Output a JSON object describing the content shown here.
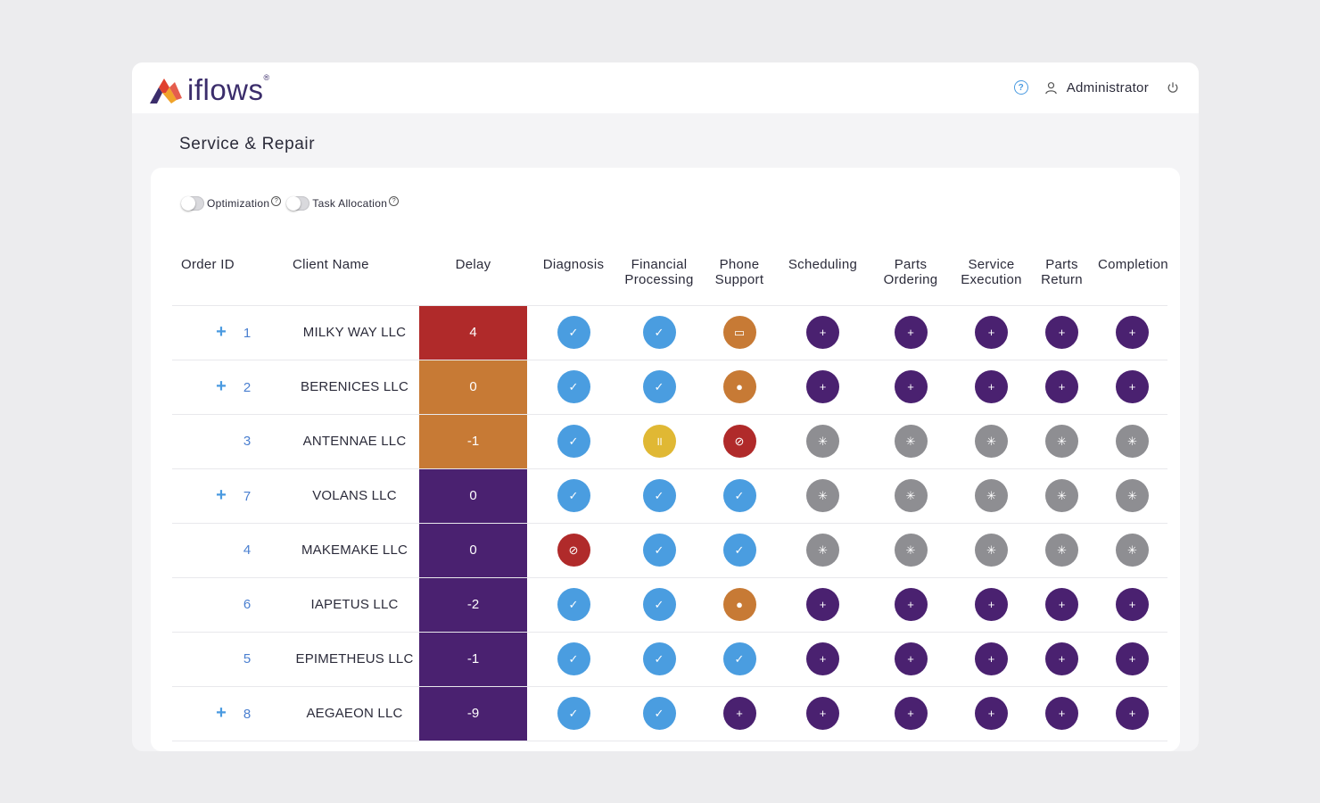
{
  "brand": {
    "logo_text": "iflows",
    "logo_reg": "®"
  },
  "header": {
    "user_name": "Administrator"
  },
  "page": {
    "title": "Service & Repair"
  },
  "toggles": [
    {
      "label": "Optimization",
      "enabled": false
    },
    {
      "label": "Task Allocation",
      "enabled": false
    }
  ],
  "columns": {
    "order_id": "Order ID",
    "client_name": "Client Name",
    "delay": "Delay",
    "stages": [
      [
        "Diagnosis"
      ],
      [
        "Financial",
        "Processing"
      ],
      [
        "Phone",
        "Support"
      ],
      [
        "Scheduling"
      ],
      [
        "Parts",
        "Ordering"
      ],
      [
        "Service",
        "Execution"
      ],
      [
        "Parts",
        "Return"
      ],
      [
        "Completion"
      ]
    ]
  },
  "status_glyphs": {
    "done": "✓",
    "add": "+",
    "wait": "✳",
    "desktop": "▭",
    "person": "●",
    "pause": "॥",
    "blocked": "⊘"
  },
  "colors": {
    "accent_blue": "#4a9de0",
    "purple": "#4a2170",
    "orange": "#c77a35",
    "red": "#b02a2a",
    "yellow": "#e0b834",
    "gray": "#8e8e92"
  },
  "rows": [
    {
      "expandable": true,
      "expand_label": "+",
      "order_id": "1",
      "client": "MILKY WAY LLC",
      "delay": "4",
      "delay_color": "red",
      "stages": [
        "done",
        "done",
        "desktop",
        "add",
        "add",
        "add",
        "add",
        "add"
      ]
    },
    {
      "expandable": true,
      "expand_label": "+",
      "order_id": "2",
      "client": "BERENICES LLC",
      "delay": "0",
      "delay_color": "orange",
      "stages": [
        "done",
        "done",
        "person",
        "add",
        "add",
        "add",
        "add",
        "add"
      ]
    },
    {
      "expandable": false,
      "expand_label": "",
      "order_id": "3",
      "client": "ANTENNAE LLC",
      "delay": "-1",
      "delay_color": "orange",
      "stages": [
        "done",
        "pause",
        "blocked",
        "wait",
        "wait",
        "wait",
        "wait",
        "wait"
      ]
    },
    {
      "expandable": true,
      "expand_label": "+",
      "order_id": "7",
      "client": "VOLANS LLC",
      "delay": "0",
      "delay_color": "purple",
      "stages": [
        "done",
        "done",
        "done",
        "wait",
        "wait",
        "wait",
        "wait",
        "wait"
      ]
    },
    {
      "expandable": false,
      "expand_label": "",
      "order_id": "4",
      "client": "MAKEMAKE LLC",
      "delay": "0",
      "delay_color": "purple",
      "stages": [
        "blocked",
        "done",
        "done",
        "wait",
        "wait",
        "wait",
        "wait",
        "wait"
      ]
    },
    {
      "expandable": false,
      "expand_label": "",
      "order_id": "6",
      "client": "IAPETUS LLC",
      "delay": "-2",
      "delay_color": "purple",
      "stages": [
        "done",
        "done",
        "person",
        "add",
        "add",
        "add",
        "add",
        "add"
      ]
    },
    {
      "expandable": false,
      "expand_label": "",
      "order_id": "5",
      "client": "EPIMETHEUS LLC",
      "delay": "-1",
      "delay_color": "purple",
      "stages": [
        "done",
        "done",
        "done",
        "add",
        "add",
        "add",
        "add",
        "add"
      ]
    },
    {
      "expandable": true,
      "expand_label": "+",
      "order_id": "8",
      "client": "AEGAEON LLC",
      "delay": "-9",
      "delay_color": "purple",
      "stages": [
        "done",
        "done",
        "add",
        "add",
        "add",
        "add",
        "add",
        "add"
      ]
    }
  ]
}
